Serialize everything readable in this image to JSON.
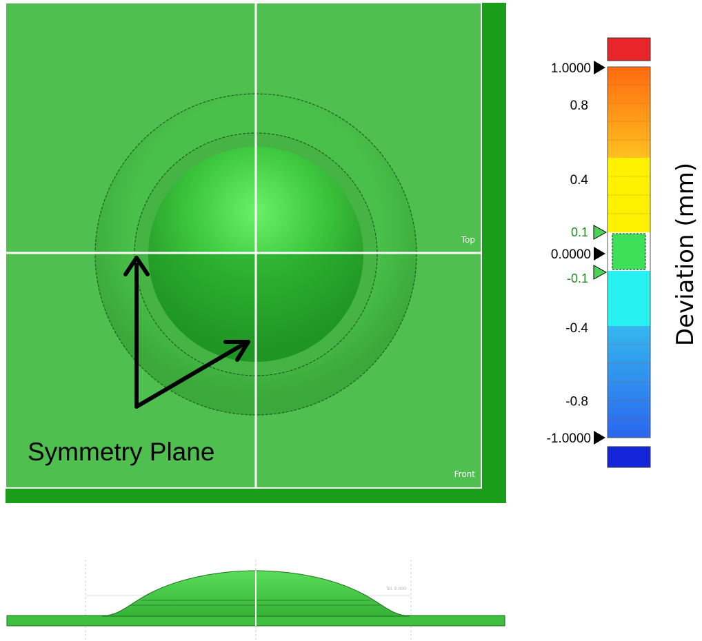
{
  "model_view": {
    "view_labels": {
      "top": "Top",
      "front": "Front"
    },
    "annotation": "Symmetry Plane"
  },
  "side_profile": {
    "faint_label": "Tol. 0.000"
  },
  "color_scale": {
    "title": "Deviation (mm)",
    "max_label": "1.0000",
    "min_label": "-1.0000",
    "nominal_label": "0.0000",
    "upper_tol_label": "0.1",
    "lower_tol_label": "-0.1",
    "ticks": [
      {
        "label": "0.8",
        "value": 0.8
      },
      {
        "label": "0.4",
        "value": 0.4
      },
      {
        "label": "-0.4",
        "value": -0.4
      },
      {
        "label": "-0.8",
        "value": -0.8
      }
    ],
    "colors": {
      "over_max": "#e8262a",
      "under_min": "#1525d9",
      "in_tolerance": "#3ee05a",
      "model_green": "#4cbb4c",
      "tolerance_marker": "#4fd25a"
    }
  }
}
